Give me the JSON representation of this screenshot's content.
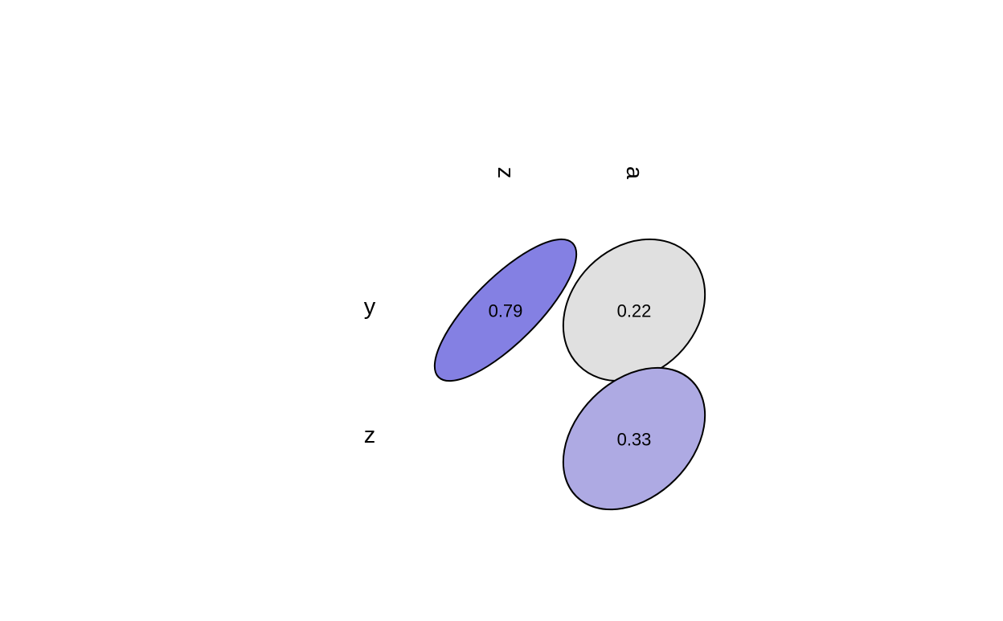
{
  "chart_data": {
    "type": "heatmap",
    "title": "",
    "row_labels": [
      "y",
      "z"
    ],
    "col_labels": [
      "z",
      "a"
    ],
    "cells": [
      {
        "row": "y",
        "col": "z",
        "value": 0.79,
        "label": "0.79",
        "fill": "#8480e3"
      },
      {
        "row": "y",
        "col": "a",
        "value": 0.22,
        "label": "0.22",
        "fill": "#e0e0e0"
      },
      {
        "row": "z",
        "col": "a",
        "value": 0.33,
        "label": "0.33",
        "fill": "#aeaae3"
      }
    ],
    "missing_cells": [
      {
        "row": "z",
        "col": "z"
      }
    ],
    "mark_shape": "ellipse",
    "grid": false,
    "legend": "none"
  }
}
